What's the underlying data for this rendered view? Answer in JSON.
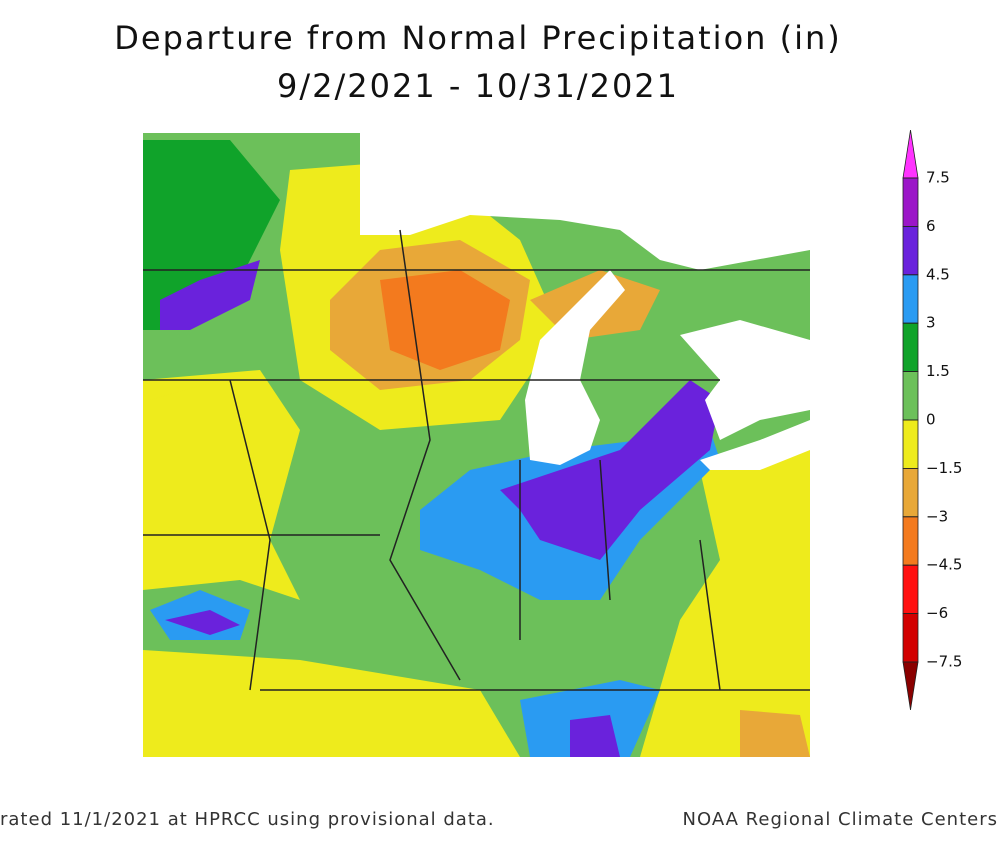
{
  "header": {
    "title": "Departure from Normal Precipitation (in)",
    "subtitle": "9/2/2021 - 10/31/2021"
  },
  "legend": {
    "lim": [
      -7.5,
      7.5
    ],
    "ticks": [
      7.5,
      6,
      4.5,
      3,
      1.5,
      0,
      {
        "value": -1.5,
        "label": "−1.5"
      },
      {
        "value": -3,
        "label": "−3"
      },
      {
        "value": -4.5,
        "label": "−4.5"
      },
      {
        "value": -6,
        "label": "−6"
      },
      {
        "value": -7.5,
        "label": "−7.5"
      }
    ],
    "colors": [
      "#ff33ff",
      "#9b16c8",
      "#6a22dc",
      "#2a9bf2",
      "#10a32a",
      "#6cc05a",
      "#eeeb1c",
      "#e8a838",
      "#f37a1e",
      "#ff1010",
      "#d20000",
      "#8a0000"
    ]
  },
  "footer": {
    "left": "rated 11/1/2021 at HPRCC using provisional data.",
    "right": "NOAA Regional Climate Centers"
  }
}
